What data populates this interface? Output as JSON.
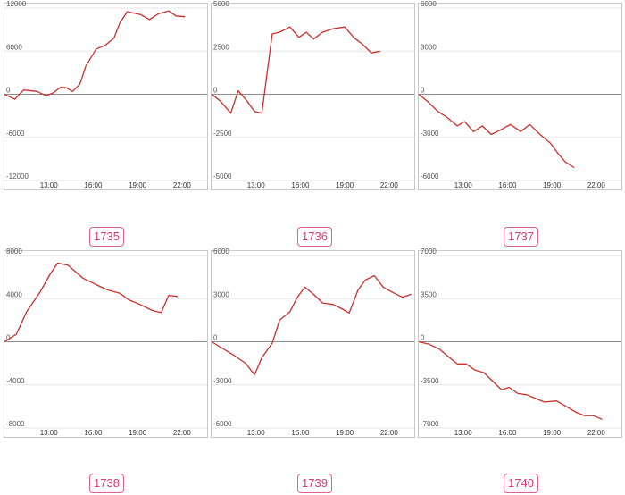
{
  "chart_data": [
    {
      "type": "line",
      "label": "1735",
      "yticks": [
        12000,
        6000,
        0,
        -6000,
        -12000
      ],
      "ylim": [
        -12000,
        12000
      ],
      "xticks": [
        "13:00",
        "16:00",
        "19:00",
        "22:00"
      ],
      "xlim": [
        10.0,
        23.7
      ],
      "points": [
        [
          10.0,
          0
        ],
        [
          10.7,
          -700
        ],
        [
          11.3,
          600
        ],
        [
          12.2,
          400
        ],
        [
          12.8,
          -200
        ],
        [
          13.3,
          200
        ],
        [
          13.8,
          1000
        ],
        [
          14.2,
          900
        ],
        [
          14.6,
          400
        ],
        [
          15.1,
          1400
        ],
        [
          15.5,
          3900
        ],
        [
          16.2,
          6300
        ],
        [
          16.8,
          6800
        ],
        [
          17.4,
          7800
        ],
        [
          17.8,
          9900
        ],
        [
          18.3,
          11500
        ],
        [
          19.2,
          11100
        ],
        [
          19.8,
          10400
        ],
        [
          20.4,
          11200
        ],
        [
          21.1,
          11600
        ],
        [
          21.6,
          10900
        ],
        [
          22.2,
          10800
        ]
      ],
      "color": "#c9302c"
    },
    {
      "type": "line",
      "label": "1736",
      "yticks": [
        5000,
        2500,
        0,
        -2500,
        -5000
      ],
      "ylim": [
        -5000,
        5000
      ],
      "xticks": [
        "13:00",
        "16:00",
        "19:00",
        "22:00"
      ],
      "xlim": [
        10.0,
        23.7
      ],
      "points": [
        [
          10.0,
          0
        ],
        [
          10.6,
          -400
        ],
        [
          11.3,
          -1100
        ],
        [
          11.8,
          200
        ],
        [
          12.4,
          -400
        ],
        [
          12.9,
          -1000
        ],
        [
          13.4,
          -1100
        ],
        [
          14.1,
          3500
        ],
        [
          14.6,
          3600
        ],
        [
          15.3,
          3900
        ],
        [
          15.9,
          3300
        ],
        [
          16.4,
          3600
        ],
        [
          16.9,
          3200
        ],
        [
          17.5,
          3600
        ],
        [
          18.2,
          3800
        ],
        [
          19.0,
          3900
        ],
        [
          19.6,
          3300
        ],
        [
          20.2,
          2900
        ],
        [
          20.8,
          2400
        ],
        [
          21.4,
          2500
        ]
      ],
      "color": "#c9302c"
    },
    {
      "type": "line",
      "label": "1737",
      "yticks": [
        6000,
        3000,
        0,
        -3000,
        -6000
      ],
      "ylim": [
        -6000,
        6000
      ],
      "xticks": [
        "13:00",
        "16:00",
        "19:00",
        "22:00"
      ],
      "xlim": [
        10.0,
        23.7
      ],
      "points": [
        [
          10.0,
          0
        ],
        [
          10.6,
          -500
        ],
        [
          11.3,
          -1200
        ],
        [
          11.9,
          -1600
        ],
        [
          12.6,
          -2200
        ],
        [
          13.1,
          -1900
        ],
        [
          13.7,
          -2600
        ],
        [
          14.3,
          -2200
        ],
        [
          14.9,
          -2800
        ],
        [
          15.5,
          -2500
        ],
        [
          16.2,
          -2100
        ],
        [
          16.9,
          -2600
        ],
        [
          17.5,
          -2100
        ],
        [
          18.2,
          -2800
        ],
        [
          18.9,
          -3400
        ],
        [
          19.4,
          -4100
        ],
        [
          19.9,
          -4700
        ],
        [
          20.5,
          -5100
        ]
      ],
      "color": "#c9302c"
    },
    {
      "type": "line",
      "label": "1738",
      "yticks": [
        8000,
        4000,
        0,
        -4000,
        -8000
      ],
      "ylim": [
        -8000,
        8000
      ],
      "xticks": [
        "13:00",
        "16:00",
        "19:00",
        "22:00"
      ],
      "xlim": [
        10.0,
        23.7
      ],
      "points": [
        [
          10.0,
          0
        ],
        [
          10.8,
          700
        ],
        [
          11.5,
          2800
        ],
        [
          12.4,
          4600
        ],
        [
          13.1,
          6300
        ],
        [
          13.6,
          7300
        ],
        [
          14.3,
          7100
        ],
        [
          15.3,
          5900
        ],
        [
          16.2,
          5300
        ],
        [
          17.0,
          4800
        ],
        [
          17.8,
          4500
        ],
        [
          18.4,
          3900
        ],
        [
          19.1,
          3500
        ],
        [
          20.0,
          2900
        ],
        [
          20.6,
          2700
        ],
        [
          21.1,
          4300
        ],
        [
          21.7,
          4200
        ]
      ],
      "color": "#c9302c"
    },
    {
      "type": "line",
      "label": "1739",
      "yticks": [
        6000,
        3000,
        0,
        -3000,
        -6000
      ],
      "ylim": [
        -6000,
        6000
      ],
      "xticks": [
        "13:00",
        "16:00",
        "19:00",
        "22:00"
      ],
      "xlim": [
        10.0,
        23.7
      ],
      "points": [
        [
          10.0,
          0
        ],
        [
          10.8,
          -500
        ],
        [
          11.6,
          -1000
        ],
        [
          12.3,
          -1500
        ],
        [
          12.9,
          -2300
        ],
        [
          13.4,
          -1100
        ],
        [
          14.1,
          -100
        ],
        [
          14.6,
          1500
        ],
        [
          15.3,
          2100
        ],
        [
          15.8,
          3100
        ],
        [
          16.3,
          3800
        ],
        [
          16.9,
          3300
        ],
        [
          17.5,
          2700
        ],
        [
          18.2,
          2600
        ],
        [
          18.8,
          2300
        ],
        [
          19.3,
          2000
        ],
        [
          19.9,
          3600
        ],
        [
          20.4,
          4300
        ],
        [
          21.0,
          4600
        ],
        [
          21.6,
          3800
        ],
        [
          22.3,
          3400
        ],
        [
          22.9,
          3100
        ],
        [
          23.5,
          3300
        ]
      ],
      "color": "#c9302c"
    },
    {
      "type": "line",
      "label": "1740",
      "yticks": [
        7000,
        3500,
        0,
        -3500,
        -7000
      ],
      "ylim": [
        -7000,
        7000
      ],
      "xticks": [
        "13:00",
        "16:00",
        "19:00",
        "22:00"
      ],
      "xlim": [
        10.0,
        23.7
      ],
      "points": [
        [
          10.0,
          0
        ],
        [
          10.7,
          -200
        ],
        [
          11.4,
          -600
        ],
        [
          12.0,
          -1200
        ],
        [
          12.6,
          -1800
        ],
        [
          13.2,
          -1800
        ],
        [
          13.8,
          -2300
        ],
        [
          14.4,
          -2500
        ],
        [
          15.0,
          -3200
        ],
        [
          15.6,
          -3900
        ],
        [
          16.1,
          -3700
        ],
        [
          16.7,
          -4200
        ],
        [
          17.3,
          -4300
        ],
        [
          17.9,
          -4600
        ],
        [
          18.5,
          -4900
        ],
        [
          19.3,
          -4800
        ],
        [
          19.9,
          -5200
        ],
        [
          20.6,
          -5700
        ],
        [
          21.2,
          -6000
        ],
        [
          21.8,
          -6000
        ],
        [
          22.4,
          -6300
        ]
      ],
      "color": "#c9302c"
    }
  ]
}
